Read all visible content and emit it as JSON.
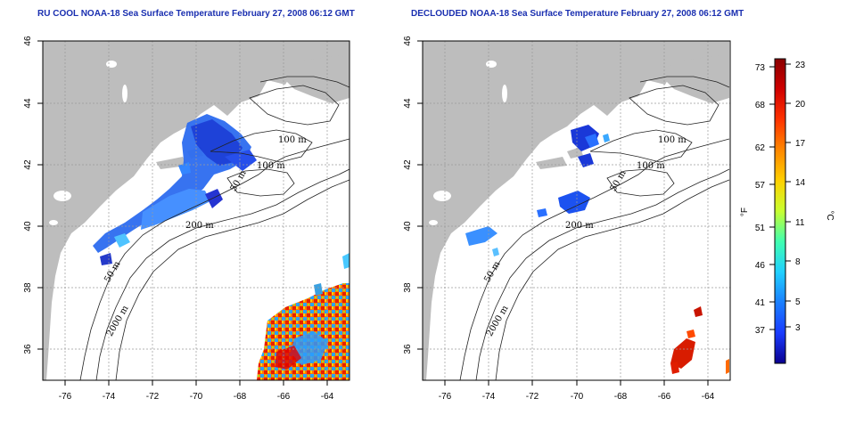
{
  "panels": [
    {
      "title": "RU COOL NOAA-18 Sea Surface Temperature February 27, 2008 06:12 GMT"
    },
    {
      "title": "DECLOUDED NOAA-18 Sea Surface Temperature February 27, 2008 06:12 GMT"
    }
  ],
  "map": {
    "lon_ticks": [
      "-76",
      "-74",
      "-72",
      "-70",
      "-68",
      "-66",
      "-64"
    ],
    "lat_ticks": [
      "46",
      "44",
      "42",
      "40",
      "38",
      "36"
    ],
    "contour_labels": {
      "left": [
        "100 m",
        "100 m",
        "50 m",
        "200 m",
        "50 m",
        "2000 m"
      ],
      "right": [
        "100 m",
        "100 m",
        "50 m",
        "200 m",
        "50 m",
        "2000 m"
      ]
    }
  },
  "colorbar": {
    "fahrenheit_ticks": [
      "73",
      "68",
      "62",
      "57",
      "51",
      "46",
      "41",
      "37"
    ],
    "celsius_ticks": [
      "23",
      "20",
      "17",
      "14",
      "11",
      "8",
      "5",
      "3"
    ],
    "label_f": "°F",
    "label_c": "°C",
    "colors": [
      "#8b0000",
      "#d00000",
      "#ff3300",
      "#ff8800",
      "#ffd000",
      "#c8ff30",
      "#40ffb0",
      "#20d0ff",
      "#1a7fff",
      "#1a3cff",
      "#0a0090"
    ]
  }
}
